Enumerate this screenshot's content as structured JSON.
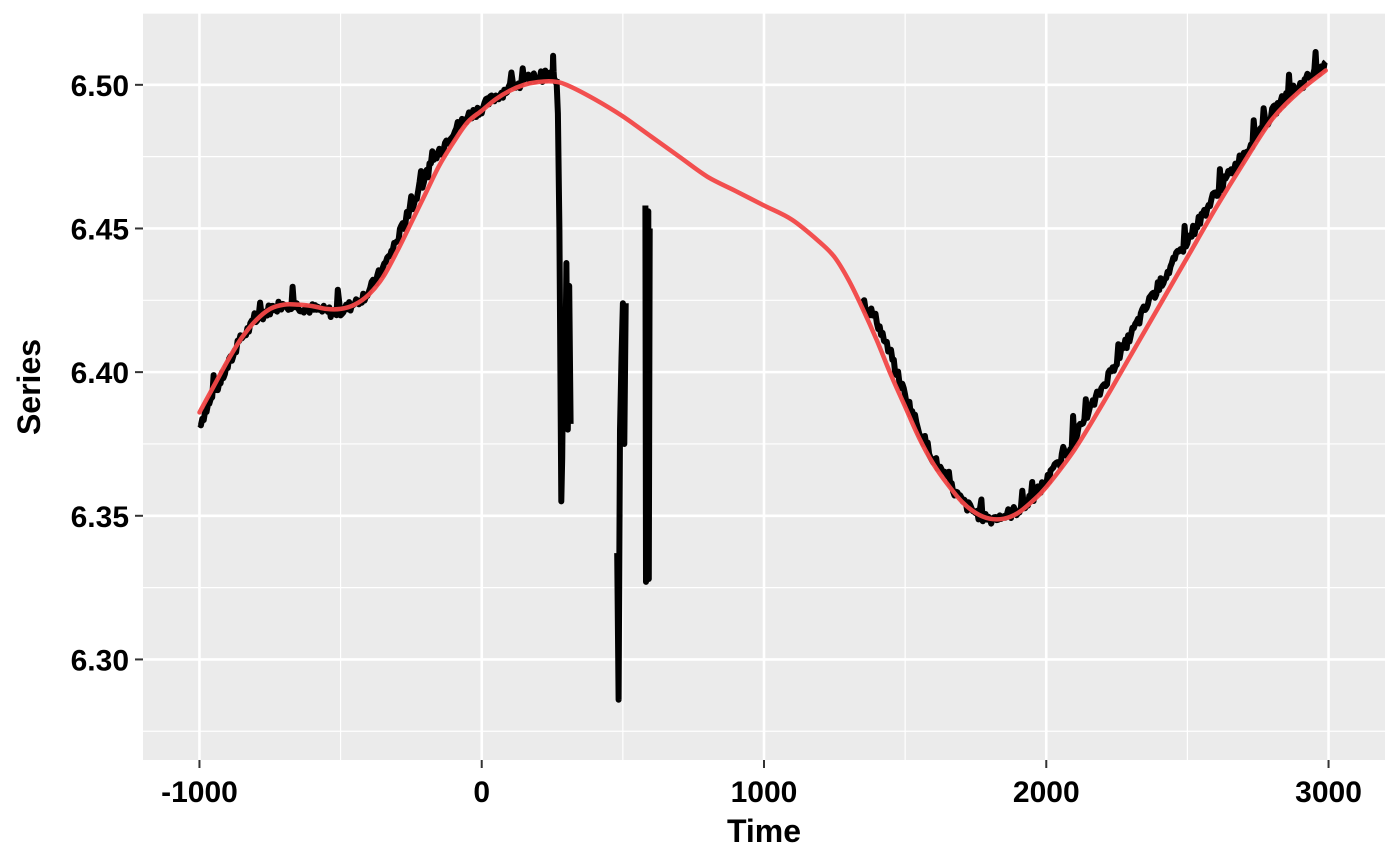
{
  "chart_data": {
    "type": "line",
    "title": "",
    "xlabel": "Time",
    "ylabel": "Series",
    "xlim": [
      -1200,
      3200
    ],
    "ylim": [
      6.265,
      6.525
    ],
    "x_ticks": [
      -1000,
      0,
      1000,
      2000,
      3000
    ],
    "x_tick_labels": [
      "-1000",
      "0",
      "1000",
      "2000",
      "3000"
    ],
    "y_ticks": [
      6.3,
      6.35,
      6.4,
      6.45,
      6.5
    ],
    "y_tick_labels": [
      "6.30",
      "6.35",
      "6.40",
      "6.45",
      "6.50"
    ],
    "grid": true,
    "background": "#EBEBEB",
    "series": [
      {
        "color": "#000000",
        "noise": 0.004,
        "segments": [
          {
            "x": [
              -1000,
              -950,
              -900,
              -850,
              -800,
              -750,
              -700,
              -650,
              -600,
              -550,
              -500,
              -450,
              -400,
              -350,
              -300,
              -250,
              -200,
              -150,
              -100,
              -50,
              0,
              50,
              100,
              150,
              200,
              250,
              265
            ],
            "y": [
              6.382,
              6.392,
              6.402,
              6.412,
              6.418,
              6.422,
              6.424,
              6.423,
              6.422,
              6.421,
              6.421,
              6.424,
              6.428,
              6.436,
              6.446,
              6.457,
              6.468,
              6.477,
              6.484,
              6.489,
              6.492,
              6.496,
              6.499,
              6.501,
              6.503,
              6.503,
              6.502
            ]
          },
          {
            "x": [
              265,
              270,
              275,
              280,
              282,
              285,
              290,
              295,
              300,
              305,
              310,
              315
            ],
            "y": [
              6.502,
              6.49,
              6.45,
              6.38,
              6.355,
              6.37,
              6.42,
              6.39,
              6.438,
              6.38,
              6.43,
              6.382
            ]
          },
          {
            "x": [
              480,
              485,
              490,
              495,
              500,
              505,
              510
            ],
            "y": [
              6.337,
              6.286,
              6.38,
              6.405,
              6.424,
              6.375,
              6.424
            ]
          },
          {
            "x": [
              580,
              582,
              585,
              588,
              590,
              592,
              595
            ],
            "y": [
              6.458,
              6.327,
              6.455,
              6.33,
              6.456,
              6.328,
              6.45
            ]
          },
          {
            "x": [
              1350,
              1400,
              1450,
              1500,
              1550,
              1600,
              1650,
              1700,
              1750,
              1800,
              1850,
              1900,
              1950,
              2000,
              2050,
              2100,
              2150,
              2200,
              2250,
              2300,
              2350,
              2400,
              2450,
              2500,
              2550,
              2600,
              2650,
              2700,
              2750,
              2800,
              2850,
              2900,
              2950,
              2990
            ],
            "y": [
              6.425,
              6.418,
              6.405,
              6.392,
              6.38,
              6.37,
              6.362,
              6.355,
              6.351,
              6.349,
              6.35,
              6.352,
              6.356,
              6.362,
              6.369,
              6.377,
              6.386,
              6.395,
              6.404,
              6.413,
              6.422,
              6.43,
              6.438,
              6.446,
              6.454,
              6.462,
              6.469,
              6.476,
              6.483,
              6.49,
              6.496,
              6.5,
              6.504,
              6.508
            ]
          }
        ]
      },
      {
        "color": "#F24747",
        "smooth": true,
        "x": [
          -1000,
          -950,
          -900,
          -850,
          -800,
          -750,
          -700,
          -650,
          -600,
          -550,
          -500,
          -450,
          -400,
          -350,
          -300,
          -250,
          -200,
          -150,
          -100,
          -50,
          0,
          50,
          100,
          150,
          200,
          250,
          300,
          400,
          500,
          600,
          700,
          800,
          900,
          1000,
          1100,
          1200,
          1250,
          1300,
          1350,
          1400,
          1450,
          1500,
          1550,
          1600,
          1650,
          1700,
          1750,
          1800,
          1850,
          1900,
          1950,
          2000,
          2100,
          2200,
          2300,
          2400,
          2500,
          2600,
          2700,
          2800,
          2900,
          2990
        ],
        "y": [
          6.386,
          6.395,
          6.404,
          6.412,
          6.418,
          6.422,
          6.4235,
          6.4235,
          6.423,
          6.422,
          6.422,
          6.4235,
          6.427,
          6.433,
          6.442,
          6.452,
          6.462,
          6.472,
          6.48,
          6.487,
          6.491,
          6.495,
          6.498,
          6.5,
          6.501,
          6.5012,
          6.5,
          6.495,
          6.489,
          6.482,
          6.475,
          6.468,
          6.463,
          6.458,
          6.453,
          6.445,
          6.44,
          6.432,
          6.422,
          6.411,
          6.399,
          6.388,
          6.377,
          6.368,
          6.361,
          6.355,
          6.351,
          6.349,
          6.349,
          6.351,
          6.355,
          6.36,
          6.373,
          6.389,
          6.406,
          6.423,
          6.44,
          6.457,
          6.473,
          6.488,
          6.498,
          6.505
        ]
      }
    ]
  }
}
